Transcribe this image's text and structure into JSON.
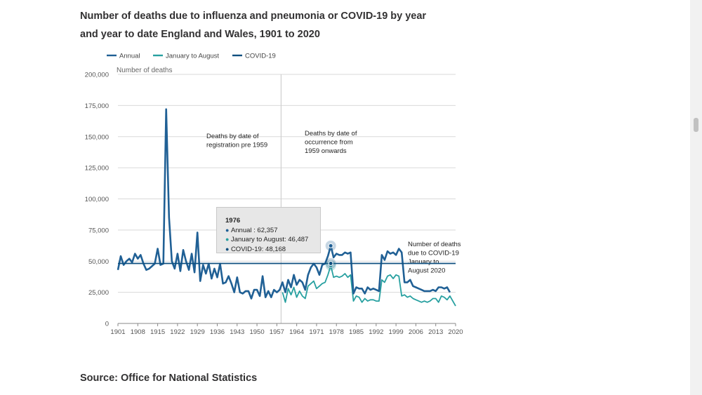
{
  "title_line1": "Number of deaths due to influenza and pneumonia or COVID-19 by year",
  "title_line2": "and year to date England and Wales, 1901 to 2020",
  "source": "Source: Office for National Statistics",
  "colors": {
    "annual": "#206095",
    "jan_aug": "#27a0a0",
    "covid": "#0e4f7f",
    "grid": "#d9d9d9",
    "divider": "#d0d0d0"
  },
  "tooltip": {
    "year": "1976",
    "annual": "Annual : 62,357",
    "jan_aug": "January to August: 46,487",
    "covid": "COVID-19: 48,168"
  },
  "chart_data": {
    "type": "line",
    "title": "Number of deaths due to influenza and pneumonia or COVID-19 by year and year to date England and Wales, 1901 to 2020",
    "ylabel": "Number of deaths",
    "xlabel": "",
    "xlim": [
      1901,
      2020
    ],
    "ylim": [
      0,
      200000
    ],
    "y_ticks": [
      0,
      25000,
      50000,
      75000,
      100000,
      125000,
      150000,
      175000,
      200000
    ],
    "y_tick_labels": [
      "0",
      "25,000",
      "50,000",
      "75,000",
      "100,000",
      "125,000",
      "150,000",
      "175,000",
      "200,000"
    ],
    "x_ticks": [
      1901,
      1908,
      1915,
      1922,
      1929,
      1936,
      1943,
      1950,
      1957,
      1964,
      1971,
      1978,
      1985,
      1992,
      1999,
      2006,
      2013,
      2020
    ],
    "x_tick_labels": [
      "1901",
      "1908",
      "1915",
      "1922",
      "1929",
      "1936",
      "1943",
      "1950",
      "1957",
      "1964",
      "1971",
      "1978",
      "1985",
      "1992",
      "1999",
      "2006",
      "2013",
      "2020"
    ],
    "legend": [
      "Annual",
      "January to August",
      "COVID-19"
    ],
    "legend_position": "top-left",
    "annotations": {
      "pre1959": [
        "Deaths by date of",
        "registration pre 1959"
      ],
      "post1959": [
        "Deaths by date of",
        "occurrence from",
        "1959 onwards"
      ],
      "covid": [
        "Number of deaths",
        "due to COVID-19",
        "January to",
        "August 2020"
      ]
    },
    "divider_year": 1958.5,
    "highlight_year": 1976,
    "series": [
      {
        "name": "Annual",
        "x": [
          1901,
          1902,
          1903,
          1904,
          1905,
          1906,
          1907,
          1908,
          1909,
          1910,
          1911,
          1912,
          1913,
          1914,
          1915,
          1916,
          1917,
          1918,
          1919,
          1920,
          1921,
          1922,
          1923,
          1924,
          1925,
          1926,
          1927,
          1928,
          1929,
          1930,
          1931,
          1932,
          1933,
          1934,
          1935,
          1936,
          1937,
          1938,
          1939,
          1940,
          1941,
          1942,
          1943,
          1944,
          1945,
          1946,
          1947,
          1948,
          1949,
          1950,
          1951,
          1952,
          1953,
          1954,
          1955,
          1956,
          1957,
          1958,
          1959,
          1960,
          1961,
          1962,
          1963,
          1964,
          1965,
          1966,
          1967,
          1968,
          1969,
          1970,
          1971,
          1972,
          1973,
          1974,
          1975,
          1976,
          1977,
          1978,
          1979,
          1980,
          1981,
          1982,
          1983,
          1984,
          1985,
          1986,
          1987,
          1988,
          1989,
          1990,
          1991,
          1992,
          1993,
          1994,
          1995,
          1996,
          1997,
          1998,
          1999,
          2000,
          2001,
          2002,
          2003,
          2004,
          2005,
          2006,
          2007,
          2008,
          2009,
          2010,
          2011,
          2012,
          2013,
          2014,
          2015,
          2016,
          2017,
          2018,
          2019,
          2020
        ],
        "values": [
          43000,
          54000,
          47000,
          50000,
          52000,
          49000,
          56000,
          52000,
          55000,
          48000,
          43000,
          44000,
          46000,
          48000,
          60000,
          47000,
          48000,
          172000,
          85000,
          50000,
          44000,
          56000,
          42000,
          59000,
          50000,
          43000,
          56000,
          41000,
          73000,
          34000,
          47000,
          40000,
          48000,
          36000,
          44000,
          37000,
          48000,
          32000,
          33000,
          38000,
          32000,
          25000,
          37000,
          25000,
          24000,
          26000,
          26000,
          20000,
          27000,
          27000,
          22000,
          38000,
          21000,
          26000,
          21000,
          27000,
          25000,
          27000,
          33000,
          25000,
          35000,
          29000,
          39000,
          31000,
          35000,
          33000,
          27000,
          39000,
          45000,
          48000,
          45000,
          39000,
          47000,
          48000,
          54000,
          62357,
          53000,
          56000,
          55000,
          55000,
          57000,
          56000,
          57000,
          24000,
          29000,
          28000,
          28000,
          24000,
          29000,
          27000,
          28000,
          27000,
          26000,
          55000,
          51000,
          58000,
          56000,
          57000,
          55000,
          60000,
          57000,
          33000,
          33000,
          35000,
          30000,
          29000,
          28000,
          27000,
          26000,
          26000,
          26000,
          27000,
          26000,
          29000,
          29000,
          28000,
          29000,
          25000,
          null,
          null
        ]
      },
      {
        "name": "January to August",
        "x": [
          1959,
          1960,
          1961,
          1962,
          1963,
          1964,
          1965,
          1966,
          1967,
          1968,
          1969,
          1970,
          1971,
          1972,
          1973,
          1974,
          1975,
          1976,
          1977,
          1978,
          1979,
          1980,
          1981,
          1982,
          1983,
          1984,
          1985,
          1986,
          1987,
          1988,
          1989,
          1990,
          1991,
          1992,
          1993,
          1994,
          1995,
          1996,
          1997,
          1998,
          1999,
          2000,
          2001,
          2002,
          2003,
          2004,
          2005,
          2006,
          2007,
          2008,
          2009,
          2010,
          2011,
          2012,
          2013,
          2014,
          2015,
          2016,
          2017,
          2018,
          2019,
          2020
        ],
        "values": [
          25000,
          17000,
          28000,
          23000,
          29000,
          21000,
          26000,
          22000,
          20000,
          30000,
          32000,
          34000,
          28000,
          30000,
          32000,
          33000,
          39000,
          46487,
          37000,
          38000,
          37000,
          38000,
          40000,
          37000,
          39000,
          18000,
          22000,
          21000,
          17000,
          20000,
          18000,
          19000,
          19000,
          18000,
          18000,
          35000,
          33000,
          38000,
          39000,
          36000,
          39000,
          38000,
          22000,
          23000,
          21000,
          22000,
          20000,
          19000,
          18000,
          17000,
          18000,
          17000,
          18000,
          20000,
          20000,
          17000,
          22000,
          21000,
          19000,
          22000,
          18000,
          14000
        ]
      },
      {
        "name": "COVID-19",
        "type": "reference-line",
        "value": 48168
      }
    ]
  }
}
